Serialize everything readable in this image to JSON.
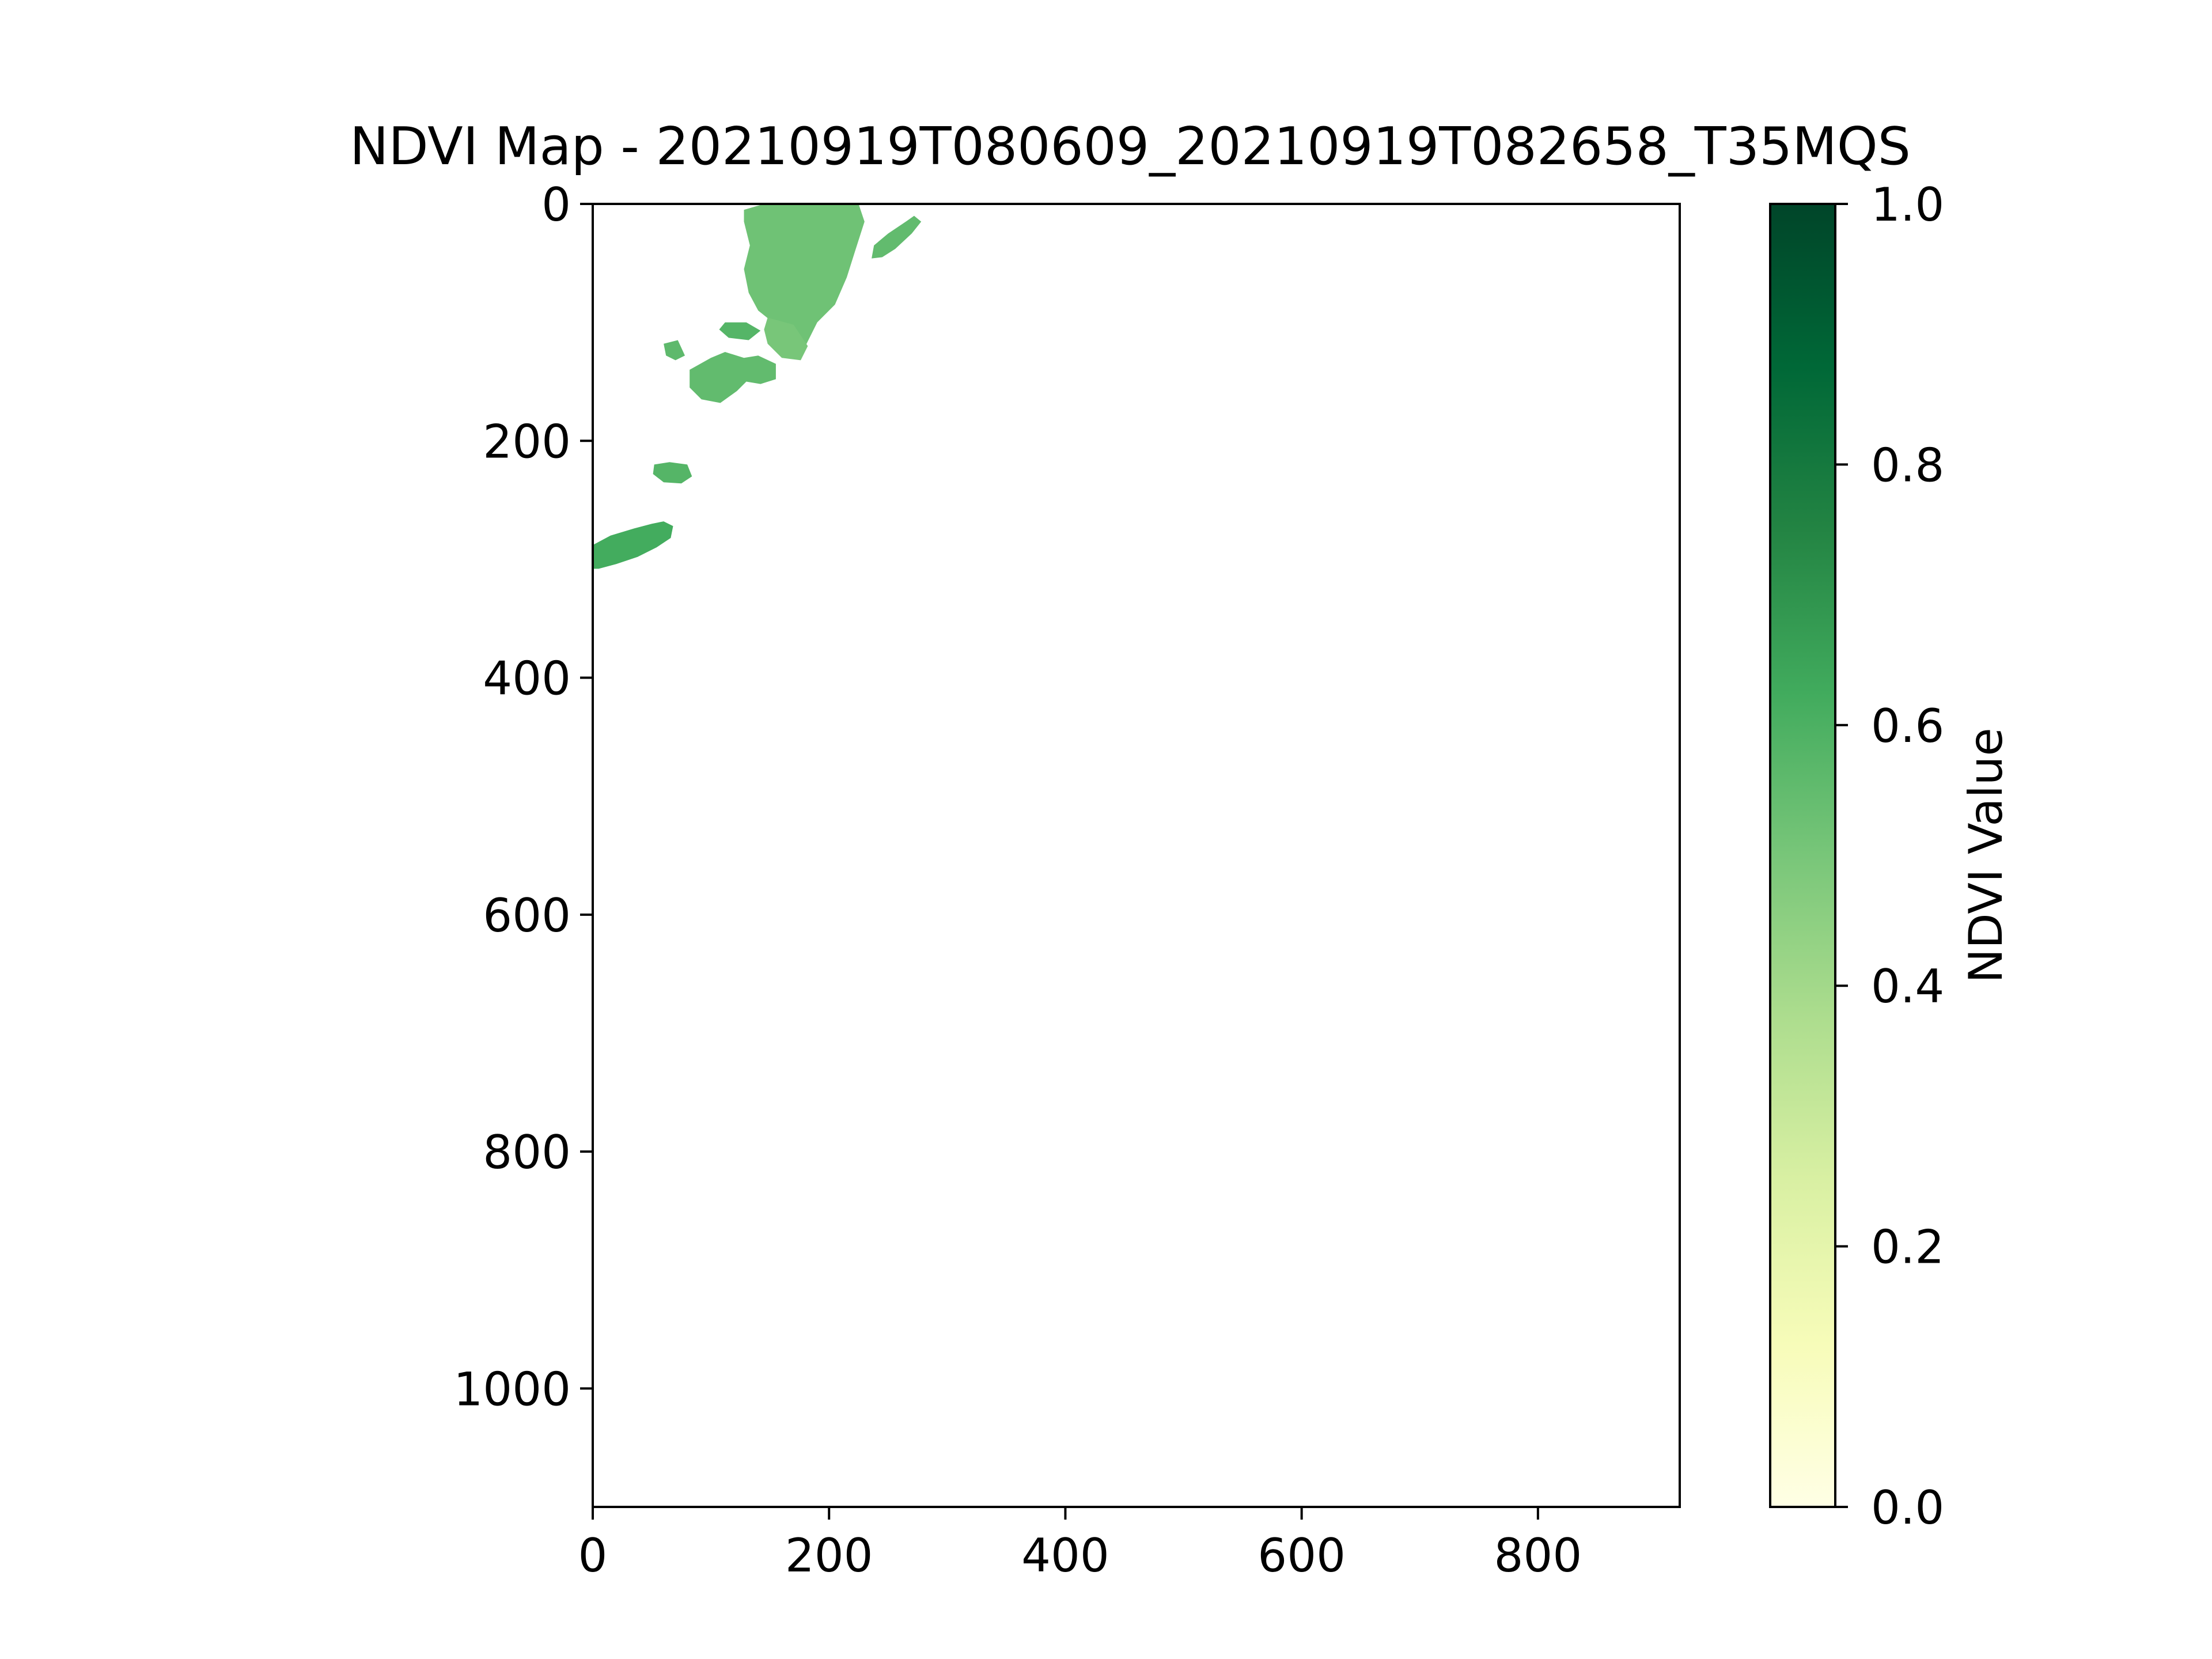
{
  "chart_data": {
    "type": "heatmap",
    "title": "NDVI Map - 20210919T080609_20210919T082658_T35MQS",
    "xlabel": "",
    "ylabel": "",
    "xlim": [
      0,
      920
    ],
    "ylim": [
      1100,
      0
    ],
    "x_ticks": [
      0,
      200,
      400,
      600,
      800
    ],
    "y_ticks": [
      0,
      200,
      400,
      600,
      800,
      1000
    ],
    "grid": false,
    "colorbar": {
      "label": "NDVI Value",
      "min": 0.0,
      "max": 1.0,
      "ticks": [
        "0.0",
        "0.2",
        "0.4",
        "0.6",
        "0.8",
        "1.0"
      ],
      "colormap": "YlGn",
      "colors": [
        "#ffffe5",
        "#f7fcb9",
        "#d9f0a3",
        "#addd8e",
        "#78c679",
        "#41ab5d",
        "#238443",
        "#006837",
        "#004529"
      ]
    },
    "regions": [
      {
        "points": [
          [
            128,
            5
          ],
          [
            145,
            0
          ],
          [
            225,
            0
          ],
          [
            230,
            15
          ],
          [
            222,
            40
          ],
          [
            215,
            62
          ],
          [
            205,
            85
          ],
          [
            190,
            100
          ],
          [
            180,
            120
          ],
          [
            172,
            118
          ],
          [
            162,
            108
          ],
          [
            150,
            98
          ],
          [
            140,
            90
          ],
          [
            132,
            75
          ],
          [
            128,
            55
          ],
          [
            133,
            35
          ],
          [
            128,
            15
          ]
        ],
        "ndvi": 0.52
      },
      {
        "points": [
          [
            148,
            96
          ],
          [
            170,
            102
          ],
          [
            182,
            120
          ],
          [
            176,
            132
          ],
          [
            160,
            130
          ],
          [
            148,
            118
          ],
          [
            145,
            106
          ]
        ],
        "ndvi": 0.5
      },
      {
        "points": [
          [
            238,
            35
          ],
          [
            250,
            25
          ],
          [
            265,
            15
          ],
          [
            272,
            10
          ],
          [
            278,
            15
          ],
          [
            270,
            25
          ],
          [
            256,
            38
          ],
          [
            245,
            45
          ],
          [
            236,
            46
          ]
        ],
        "ndvi": 0.55
      },
      {
        "points": [
          [
            112,
            100
          ],
          [
            130,
            100
          ],
          [
            142,
            107
          ],
          [
            132,
            115
          ],
          [
            115,
            113
          ],
          [
            107,
            106
          ]
        ],
        "ndvi": 0.58
      },
      {
        "points": [
          [
            60,
            118
          ],
          [
            72,
            115
          ],
          [
            78,
            128
          ],
          [
            70,
            132
          ],
          [
            62,
            128
          ]
        ],
        "ndvi": 0.56
      },
      {
        "points": [
          [
            82,
            140
          ],
          [
            100,
            130
          ],
          [
            112,
            125
          ],
          [
            128,
            130
          ],
          [
            140,
            128
          ],
          [
            155,
            135
          ],
          [
            155,
            148
          ],
          [
            142,
            152
          ],
          [
            130,
            150
          ],
          [
            122,
            158
          ],
          [
            108,
            168
          ],
          [
            92,
            165
          ],
          [
            82,
            155
          ]
        ],
        "ndvi": 0.55
      },
      {
        "points": [
          [
            52,
            220
          ],
          [
            65,
            218
          ],
          [
            80,
            220
          ],
          [
            84,
            230
          ],
          [
            75,
            236
          ],
          [
            60,
            235
          ],
          [
            51,
            228
          ]
        ],
        "ndvi": 0.58
      },
      {
        "points": [
          [
            0,
            288
          ],
          [
            15,
            280
          ],
          [
            35,
            274
          ],
          [
            50,
            270
          ],
          [
            60,
            268
          ],
          [
            68,
            272
          ],
          [
            66,
            282
          ],
          [
            54,
            290
          ],
          [
            38,
            298
          ],
          [
            20,
            304
          ],
          [
            5,
            308
          ],
          [
            0,
            308
          ]
        ],
        "ndvi": 0.62
      }
    ]
  }
}
